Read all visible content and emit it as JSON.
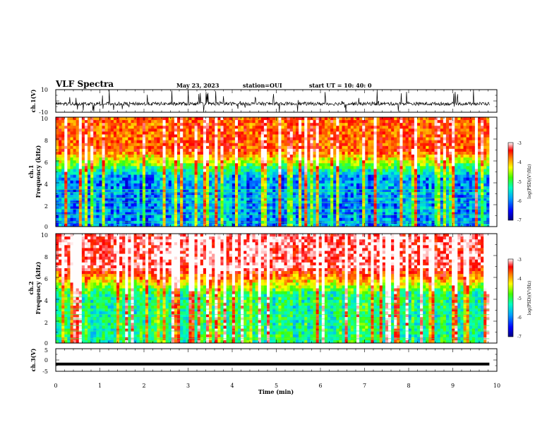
{
  "header": {
    "title": "VLF Spectra",
    "date": "May 23, 2023",
    "station": "station=OUI",
    "start": "start UT = 10: 40: 0"
  },
  "panels": {
    "ch1_wave": {
      "ylabel": "ch.1(V)",
      "ticks": [
        "10",
        "-10"
      ]
    },
    "ch1_spec": {
      "ylabel_top": "ch.1",
      "ylabel_bottom": "Frequency (kHz)",
      "ticks": [
        "10",
        "8",
        "6",
        "4",
        "2",
        "0"
      ]
    },
    "ch2_spec": {
      "ylabel_top": "ch.2",
      "ylabel_bottom": "Frequency (kHz)",
      "ticks": [
        "10",
        "8",
        "6",
        "4",
        "2",
        "0"
      ]
    },
    "ch3_wave": {
      "ylabel": "ch.3(V)",
      "ticks": [
        "5",
        "0",
        "-5"
      ]
    }
  },
  "colorbar": {
    "label": "log(PSD)(V²/Hz)",
    "ticks": [
      "-3",
      "-4",
      "-5",
      "-6",
      "-7"
    ],
    "colors": [
      "#000080",
      "#0000ff",
      "#00a0ff",
      "#00ffc0",
      "#40ff00",
      "#ffff00",
      "#ff8000",
      "#ff0000",
      "#ffffff"
    ]
  },
  "xaxis": {
    "label": "Time (min)",
    "ticks": [
      "0",
      "1",
      "2",
      "3",
      "4",
      "5",
      "6",
      "7",
      "8",
      "9",
      "10"
    ]
  },
  "chart_data": [
    {
      "type": "line",
      "name": "ch.1 waveform",
      "ylabel": "ch.1(V)",
      "xlim": [
        0,
        10
      ],
      "ylim": [
        -10,
        10
      ],
      "x_extent": [
        0,
        9.83
      ],
      "typical_level": -2.5,
      "spike_range": [
        -10,
        10
      ]
    },
    {
      "type": "heatmap",
      "name": "ch.1 spectrogram",
      "ylabel": "Frequency (kHz)",
      "xlim": [
        0,
        10
      ],
      "ylim": [
        0,
        10
      ],
      "zlim": [
        -7,
        -3
      ],
      "zlabel": "log(PSD)(V²/Hz)",
      "dominant_above_kHz": {
        "range": [
          7,
          10
        ],
        "log_psd": -4
      },
      "dominant_below_kHz": {
        "range": [
          0,
          5
        ],
        "log_psd": -6.3
      },
      "horizontal_lines_kHz": [
        0.4,
        1.1,
        1.6,
        2.2,
        2.6,
        3.1,
        3.4
      ]
    },
    {
      "type": "heatmap",
      "name": "ch.2 spectrogram",
      "ylabel": "Frequency (kHz)",
      "xlim": [
        0,
        10
      ],
      "ylim": [
        0,
        10
      ],
      "zlim": [
        -7,
        -3
      ],
      "zlabel": "log(PSD)(V²/Hz)",
      "dominant_above_kHz": {
        "range": [
          7,
          10
        ],
        "log_psd": -3.4
      },
      "dominant_below_kHz": {
        "range": [
          0,
          4
        ],
        "log_psd": -5.6
      },
      "horizontal_lines_kHz": [
        0.4,
        1.1,
        1.6,
        2.2,
        2.6,
        3.1,
        3.6,
        4.2
      ]
    },
    {
      "type": "line",
      "name": "ch.3 waveform",
      "ylabel": "ch.3(V)",
      "xlim": [
        0,
        10
      ],
      "ylim": [
        -5,
        5
      ],
      "x_extent": [
        0,
        9.83
      ],
      "constant_level": -1.8
    }
  ]
}
